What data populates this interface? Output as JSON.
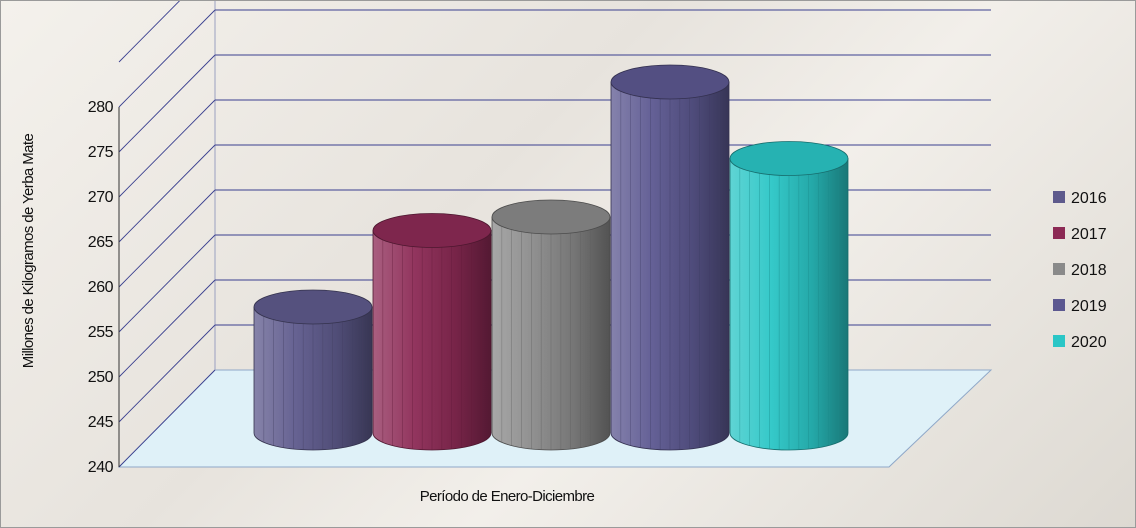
{
  "chart_data": {
    "type": "bar",
    "style": "3d-cylinder",
    "categories": [
      "Período de Enero-Diciembre"
    ],
    "series": [
      {
        "name": "2016",
        "values": [
          254
        ],
        "color": "#5e5a8c"
      },
      {
        "name": "2017",
        "values": [
          262.5
        ],
        "color": "#8c2a55"
      },
      {
        "name": "2018",
        "values": [
          264
        ],
        "color": "#8a8a8a"
      },
      {
        "name": "2019",
        "values": [
          279
        ],
        "color": "#5c5890"
      },
      {
        "name": "2020",
        "values": [
          270.5
        ],
        "color": "#2ac6c6"
      }
    ],
    "title": "",
    "xlabel": "Período de Enero-Diciembre",
    "ylabel": "Millones de Kilogramos de Yerba Mate",
    "ylim": [
      240,
      280
    ],
    "yticks": [
      240,
      245,
      250,
      255,
      260,
      265,
      270,
      275,
      280
    ],
    "grid": true,
    "legend_position": "right",
    "colors": {
      "floor": "#dff1f8",
      "gridline": "#3a3f8f"
    }
  }
}
